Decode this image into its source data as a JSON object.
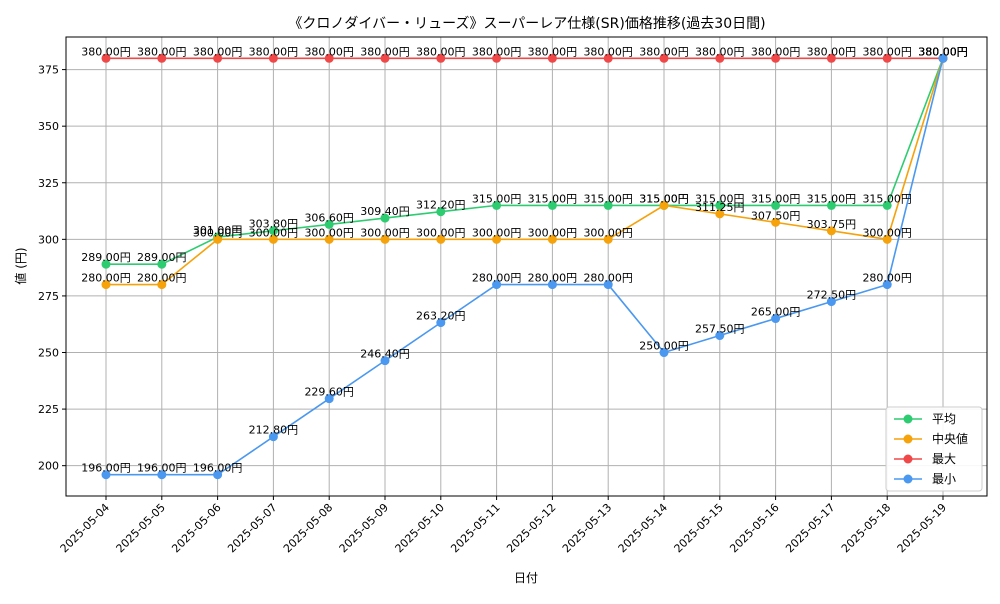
{
  "chart_data": {
    "type": "line",
    "title": "《クロノダイバー・リューズ》スーパーレア仕様(SR)価格推移(過去30日間)",
    "xlabel": "日付",
    "ylabel": "値 (円)",
    "ylim": [
      186.6,
      389.4
    ],
    "yticks": [
      200,
      225,
      250,
      275,
      300,
      325,
      350,
      375
    ],
    "grid": true,
    "legend_position": "lower-right",
    "categories": [
      "2025-05-04",
      "2025-05-05",
      "2025-05-06",
      "2025-05-07",
      "2025-05-08",
      "2025-05-09",
      "2025-05-10",
      "2025-05-11",
      "2025-05-12",
      "2025-05-13",
      "2025-05-14",
      "2025-05-15",
      "2025-05-16",
      "2025-05-17",
      "2025-05-18",
      "2025-05-19"
    ],
    "series": [
      {
        "name": "平均",
        "color": "#2ecc71",
        "values": [
          289.0,
          289.0,
          301.0,
          303.8,
          306.6,
          309.4,
          312.2,
          315.0,
          315.0,
          315.0,
          315.0,
          315.0,
          315.0,
          315.0,
          315.0,
          380.0
        ],
        "labels": [
          "289.00円",
          "289.00円",
          "301.00円",
          "303.80円",
          "306.60円",
          "309.40円",
          "312.20円",
          "315.00円",
          "315.00円",
          "315.00円",
          "315.00円",
          "315.00円",
          "315.00円",
          "315.00円",
          "315.00円",
          "380.00円"
        ]
      },
      {
        "name": "中央値",
        "color": "#f5a20b",
        "values": [
          280.0,
          280.0,
          300.0,
          300.0,
          300.0,
          300.0,
          300.0,
          300.0,
          300.0,
          300.0,
          315.0,
          311.25,
          307.5,
          303.75,
          300.0,
          380.0
        ],
        "labels": [
          "280.00円",
          "280.00円",
          "300.00円",
          "300.00円",
          "300.00円",
          "300.00円",
          "300.00円",
          "300.00円",
          "300.00円",
          "300.00円",
          "315.00円",
          "311.25円",
          "307.50円",
          "303.75円",
          "300.00円",
          "380.00円"
        ]
      },
      {
        "name": "最大",
        "color": "#f04848",
        "values": [
          380.0,
          380.0,
          380.0,
          380.0,
          380.0,
          380.0,
          380.0,
          380.0,
          380.0,
          380.0,
          380.0,
          380.0,
          380.0,
          380.0,
          380.0,
          380.0
        ],
        "labels": [
          "380.00円",
          "380.00円",
          "380.00円",
          "380.00円",
          "380.00円",
          "380.00円",
          "380.00円",
          "380.00円",
          "380.00円",
          "380.00円",
          "380.00円",
          "380.00円",
          "380.00円",
          "380.00円",
          "380.00円",
          "380.00円"
        ]
      },
      {
        "name": "最小",
        "color": "#4a98f0",
        "values": [
          196.0,
          196.0,
          196.0,
          212.8,
          229.6,
          246.4,
          263.2,
          280.0,
          280.0,
          280.0,
          250.0,
          257.5,
          265.0,
          272.5,
          280.0,
          380.0
        ],
        "labels": [
          "196.00円",
          "196.00円",
          "196.00円",
          "212.80円",
          "229.60円",
          "246.40円",
          "263.20円",
          "280.00円",
          "280.00円",
          "280.00円",
          "250.00円",
          "257.50円",
          "265.00円",
          "272.50円",
          "280.00円",
          "380.00円"
        ]
      }
    ]
  }
}
